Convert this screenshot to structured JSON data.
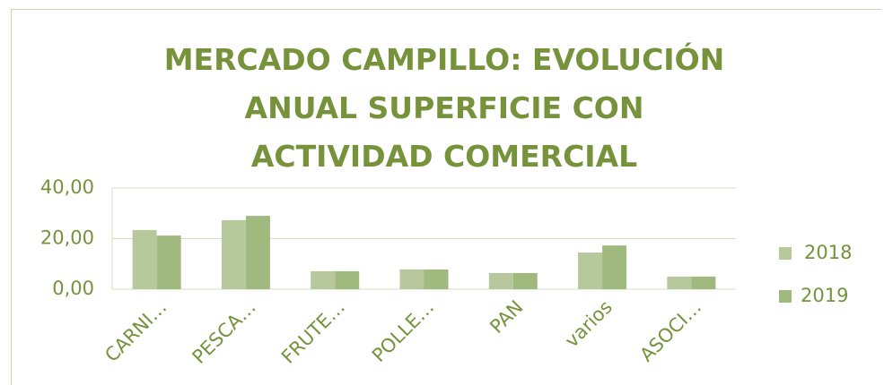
{
  "chart_data": {
    "type": "bar",
    "title": "MERCADO CAMPILLO: EVOLUCIÓN ANUAL SUPERFICIE CON ACTIVIDAD COMERCIAL",
    "categories": [
      "CARNI…",
      "PESCA…",
      "FRUTE…",
      "POLLE…",
      "PAN",
      "varios",
      "ASOCI…"
    ],
    "series": [
      {
        "name": "2018",
        "color": "#b7c99c",
        "values": [
          23.4,
          27.3,
          7.1,
          7.8,
          6.4,
          14.5,
          5
        ]
      },
      {
        "name": "2019",
        "color": "#9fb97f",
        "values": [
          21.2,
          29,
          7.1,
          7.8,
          6.4,
          17.3,
          5
        ]
      }
    ],
    "ylim": [
      0,
      40
    ],
    "yticks": [
      {
        "value": 0,
        "label": "0,00"
      },
      {
        "value": 20,
        "label": "20,00"
      },
      {
        "value": 40,
        "label": "40,00"
      }
    ],
    "grid": true,
    "legend": "right"
  }
}
